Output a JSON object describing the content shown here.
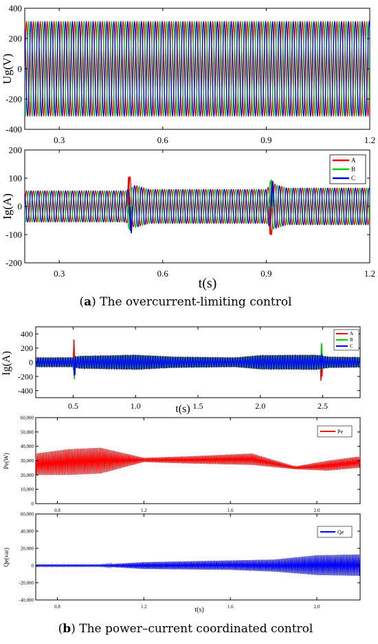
{
  "chart_data": [
    {
      "id": "a1",
      "type": "line",
      "ylabel": "Ug(V)",
      "xlabel": "",
      "xlim": [
        0.2,
        1.2
      ],
      "ylim": [
        -400,
        400
      ],
      "x_ticks": [
        "0.3",
        "0.6",
        "0.9",
        "1.2"
      ],
      "y_ticks": [
        "400",
        "200",
        "0",
        "-200",
        "-400"
      ],
      "frequency_hz": 50,
      "series": [
        {
          "color": "#ff0000",
          "amplitude": 311,
          "phase_deg": 0
        },
        {
          "color": "#00cc00",
          "amplitude": 311,
          "phase_deg": -120
        },
        {
          "color": "#0000ff",
          "amplitude": 311,
          "phase_deg": 120
        }
      ]
    },
    {
      "id": "a2",
      "type": "line",
      "ylabel": "Ig(A)",
      "xlabel": "t(s)",
      "xlim": [
        0.2,
        1.2
      ],
      "ylim": [
        -200,
        200
      ],
      "x_ticks": [
        "0.3",
        "0.6",
        "0.9",
        "1.2"
      ],
      "y_ticks": [
        "200",
        "100",
        "0",
        "-100",
        "-200"
      ],
      "frequency_hz": 50,
      "legend": [
        "A",
        "B",
        "C"
      ],
      "legend_position": "top-right",
      "amplitude_profile": [
        [
          0.2,
          55
        ],
        [
          0.5,
          55
        ],
        [
          0.52,
          75
        ],
        [
          0.56,
          60
        ],
        [
          0.9,
          60
        ],
        [
          0.92,
          80
        ],
        [
          0.96,
          65
        ],
        [
          1.2,
          65
        ]
      ],
      "transients": [
        {
          "t": 0.505,
          "values": [
            105,
            -85,
            -95
          ]
        },
        {
          "t": 0.915,
          "values": [
            -100,
            95,
            90
          ]
        }
      ],
      "series": [
        {
          "name": "A",
          "color": "#ff0000",
          "phase_deg": 0
        },
        {
          "name": "B",
          "color": "#00cc00",
          "phase_deg": -120
        },
        {
          "name": "C",
          "color": "#0000ff",
          "phase_deg": 120
        }
      ]
    },
    {
      "id": "b1",
      "type": "line",
      "ylabel": "Ig(A)",
      "xlabel": "t(s)",
      "xlim": [
        0.2,
        2.8
      ],
      "ylim": [
        -500,
        500
      ],
      "x_ticks": [
        "0.5",
        "1.0",
        "1.5",
        "2.0",
        "2.5"
      ],
      "y_ticks": [
        "400",
        "200",
        "0",
        "-200",
        "-400"
      ],
      "frequency_hz": 50,
      "legend": [
        "A",
        "B",
        "C"
      ],
      "legend_position": "top-right",
      "amplitude_profile": [
        [
          0.2,
          60
        ],
        [
          0.5,
          60
        ],
        [
          0.55,
          80
        ],
        [
          1.0,
          95
        ],
        [
          1.3,
          70
        ],
        [
          1.8,
          60
        ],
        [
          2.0,
          90
        ],
        [
          2.45,
          95
        ],
        [
          2.55,
          70
        ],
        [
          2.8,
          65
        ]
      ],
      "transients": [
        {
          "t": 0.51,
          "values": [
            320,
            -240,
            -180
          ]
        },
        {
          "t": 2.49,
          "values": [
            -260,
            270,
            120
          ]
        }
      ],
      "series": [
        {
          "name": "A",
          "color": "#ff0000",
          "phase_deg": 0
        },
        {
          "name": "B",
          "color": "#00cc00",
          "phase_deg": -120
        },
        {
          "name": "C",
          "color": "#0000ff",
          "phase_deg": 120
        }
      ]
    },
    {
      "id": "b2",
      "type": "area",
      "ylabel": "Pe(W)",
      "xlabel": "",
      "xlim": [
        0.7,
        2.2
      ],
      "ylim": [
        0,
        60000
      ],
      "x_ticks": [
        "0.8",
        "1.2",
        "1.6",
        "2.0"
      ],
      "y_ticks": [
        "60,000",
        "50,000",
        "40,000",
        "30,000",
        "20,000",
        "10,000",
        "0"
      ],
      "legend": [
        "Pe"
      ],
      "legend_position": "top-right",
      "series": [
        {
          "name": "Pe",
          "color": "#ff0000",
          "upper": [
            [
              0.7,
              35000
            ],
            [
              0.85,
              38000
            ],
            [
              1.0,
              39000
            ],
            [
              1.2,
              32000
            ],
            [
              1.4,
              33000
            ],
            [
              1.7,
              35000
            ],
            [
              1.9,
              26000
            ],
            [
              2.05,
              30000
            ],
            [
              2.2,
              33000
            ]
          ],
          "lower": [
            [
              0.7,
              20000
            ],
            [
              0.85,
              20000
            ],
            [
              1.0,
              21000
            ],
            [
              1.2,
              29000
            ],
            [
              1.4,
              28000
            ],
            [
              1.7,
              27000
            ],
            [
              1.9,
              24000
            ],
            [
              2.05,
              23000
            ],
            [
              2.2,
              25000
            ]
          ]
        }
      ]
    },
    {
      "id": "b3",
      "type": "area",
      "ylabel": "Qe(var)",
      "xlabel": "t(s)",
      "xlim": [
        0.7,
        2.2
      ],
      "ylim": [
        -40000,
        60000
      ],
      "x_ticks": [
        "0.8",
        "1.2",
        "1.6",
        "2.0"
      ],
      "y_ticks": [
        "60,000",
        "40,000",
        "20,000",
        "0",
        "-20,000",
        "-40,000"
      ],
      "legend": [
        "Qe"
      ],
      "legend_position": "top-right",
      "series": [
        {
          "name": "Qe",
          "color": "#0000ff",
          "upper": [
            [
              0.7,
              1000
            ],
            [
              1.0,
              1000
            ],
            [
              1.2,
              4000
            ],
            [
              1.6,
              6000
            ],
            [
              1.8,
              7000
            ],
            [
              2.0,
              12000
            ],
            [
              2.2,
              13000
            ]
          ],
          "lower": [
            [
              0.7,
              -1000
            ],
            [
              1.0,
              -1000
            ],
            [
              1.2,
              -4000
            ],
            [
              1.6,
              -5000
            ],
            [
              1.8,
              -7000
            ],
            [
              2.0,
              -11000
            ],
            [
              2.2,
              -12000
            ]
          ]
        }
      ]
    }
  ],
  "captions": {
    "a": {
      "label": "a",
      "text": " The overcurrent-limiting control"
    },
    "b": {
      "label": "b",
      "text": " The power–current coordinated control"
    }
  }
}
